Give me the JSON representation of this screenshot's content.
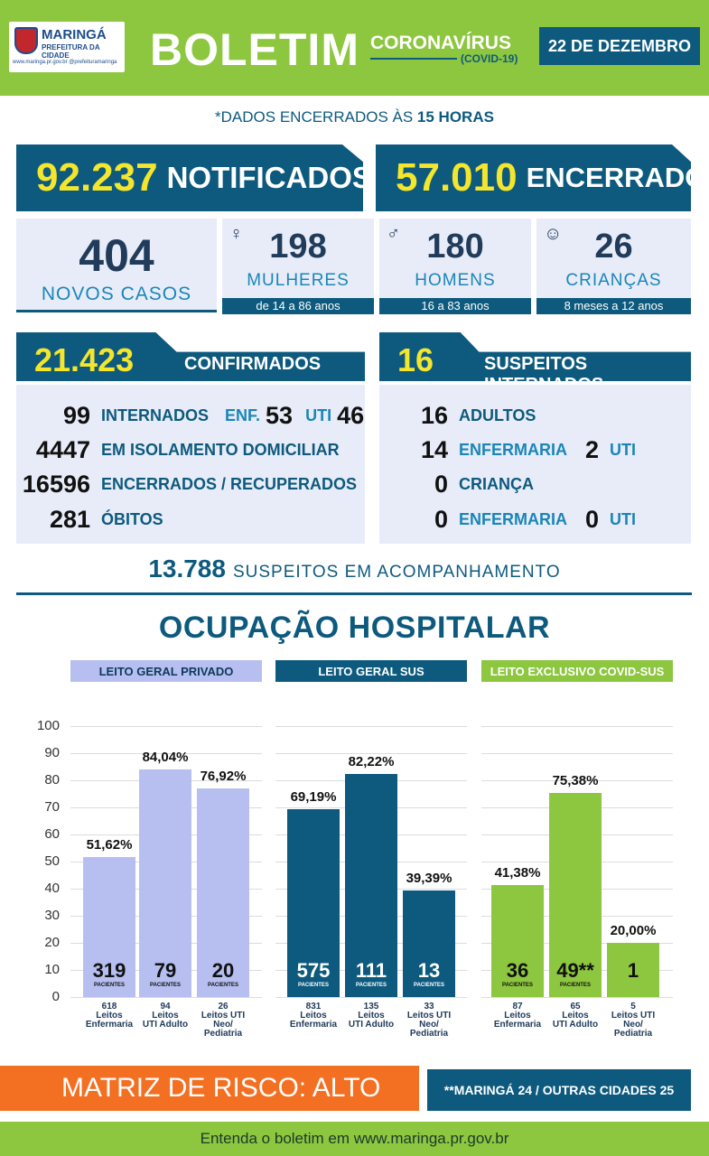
{
  "logo": {
    "name": "MARINGÁ",
    "sub": "PREFEITURA DA CIDADE",
    "url": "www.maringa.pr.gov.br  @prefeituramaringa"
  },
  "header": {
    "title": "BOLETIM",
    "coronavirus": "CORONAVÍRUS",
    "covid": "(COVID-19)",
    "date": "22 DE DEZEMBRO"
  },
  "subtitle": {
    "prefix": "*DADOS ENCERRADOS ÀS ",
    "hour": "15 HORAS"
  },
  "notificados": {
    "value": "92.237",
    "label": "NOTIFICADOS"
  },
  "encerrados": {
    "value": "57.010",
    "label": "ENCERRADOS"
  },
  "novos_casos": {
    "value": "404",
    "label": "NOVOS CASOS"
  },
  "mulheres": {
    "value": "198",
    "label": "MULHERES",
    "range": "de 14 a 86 anos"
  },
  "homens": {
    "value": "180",
    "label": "HOMENS",
    "range": "16 a 83 anos"
  },
  "criancas": {
    "value": "26",
    "label": "CRIANÇAS",
    "range": "8 meses a 12 anos"
  },
  "confirmados": {
    "value": "21.423",
    "label": "CONFIRMADOS",
    "rows": [
      {
        "num": "99",
        "label": "INTERNADOS",
        "enf_label": "ENF.",
        "enf": "53",
        "uti_label": "UTI",
        "uti": "46"
      },
      {
        "num": "4447",
        "label": "EM ISOLAMENTO DOMICILIAR"
      },
      {
        "num": "16596",
        "label": "ENCERRADOS / RECUPERADOS"
      },
      {
        "num": "281",
        "label": "ÓBITOS"
      }
    ]
  },
  "suspeitos_internados": {
    "value": "16",
    "label": "SUSPEITOS INTERNADOS",
    "rows": [
      {
        "num": "16",
        "label": "ADULTOS"
      },
      {
        "num": "14",
        "label": "ENFERMARIA",
        "num2": "2",
        "label2": "UTI"
      },
      {
        "num": "0",
        "label": "CRIANÇA"
      },
      {
        "num": "0",
        "label": "ENFERMARIA",
        "num2": "0",
        "label2": "UTI"
      }
    ]
  },
  "acompanhamento": {
    "value": "13.788",
    "label": "SUSPEITOS EM ACOMPANHAMENTO"
  },
  "ocupacao_title": "OCUPAÇÃO HOSPITALAR",
  "chart_data": {
    "type": "bar",
    "title": "OCUPAÇÃO HOSPITALAR",
    "ylim": [
      0,
      100
    ],
    "yticks": [
      "0",
      "10",
      "20",
      "30",
      "40",
      "50",
      "60",
      "70",
      "80",
      "90",
      "100"
    ],
    "grid": true,
    "groups": [
      {
        "name": "LEITO GERAL PRIVADO",
        "color": "#b6bff0",
        "text": "dark",
        "bars": [
          {
            "pct": 51.62,
            "pct_label": "51,62%",
            "count": "319",
            "sub": "PACIENTES",
            "x1": "618",
            "x2": "Leitos",
            "x3": "Enfermaria"
          },
          {
            "pct": 84.04,
            "pct_label": "84,04%",
            "count": "79",
            "sub": "PACIENTES",
            "x1": "94",
            "x2": "Leitos",
            "x3": "UTI Adulto"
          },
          {
            "pct": 76.92,
            "pct_label": "76,92%",
            "count": "20",
            "sub": "PACIENTES",
            "x1": "26",
            "x2": "Leitos UTI",
            "x3": "Neo/",
            "x4": "Pediatria"
          }
        ]
      },
      {
        "name": "LEITO GERAL SUS",
        "color": "#0d5a7e",
        "text": "light",
        "bars": [
          {
            "pct": 69.19,
            "pct_label": "69,19%",
            "count": "575",
            "sub": "PACIENTES",
            "x1": "831",
            "x2": "Leitos",
            "x3": "Enfermaria"
          },
          {
            "pct": 82.22,
            "pct_label": "82,22%",
            "count": "111",
            "sub": "PACIENTES",
            "x1": "135",
            "x2": "Leitos",
            "x3": "UTI Adulto"
          },
          {
            "pct": 39.39,
            "pct_label": "39,39%",
            "count": "13",
            "sub": "PACIENTES",
            "x1": "33",
            "x2": "Leitos UTI",
            "x3": "Neo/",
            "x4": "Pediatria"
          }
        ]
      },
      {
        "name": "LEITO EXCLUSIVO COVID-SUS",
        "color": "#8dc63f",
        "text": "dark",
        "bars": [
          {
            "pct": 41.38,
            "pct_label": "41,38%",
            "count": "36",
            "sub": "PACIENTES",
            "x1": "87",
            "x2": "Leitos",
            "x3": "Enfermaria"
          },
          {
            "pct": 75.38,
            "pct_label": "75,38%",
            "count": "49**",
            "sub": "PACIENTES",
            "x1": "65",
            "x2": "Leitos",
            "x3": "UTI Adulto"
          },
          {
            "pct": 20.0,
            "pct_label": "20,00%",
            "count": "1",
            "sub": "",
            "x1": "5",
            "x2": "Leitos UTI",
            "x3": "Neo/",
            "x4": "Pediatria"
          }
        ]
      }
    ]
  },
  "risk": "MATRIZ DE RISCO: ALTO",
  "cities": "**MARINGÁ 24 / OUTRAS CIDADES 25",
  "footer": "Entenda o boletim em www.maringa.pr.gov.br",
  "colors": {
    "green": "#8dc63f",
    "navy": "#0d5a7e",
    "yellow": "#f4e52d",
    "orange": "#f36f21",
    "lavender": "#b6bff0"
  }
}
